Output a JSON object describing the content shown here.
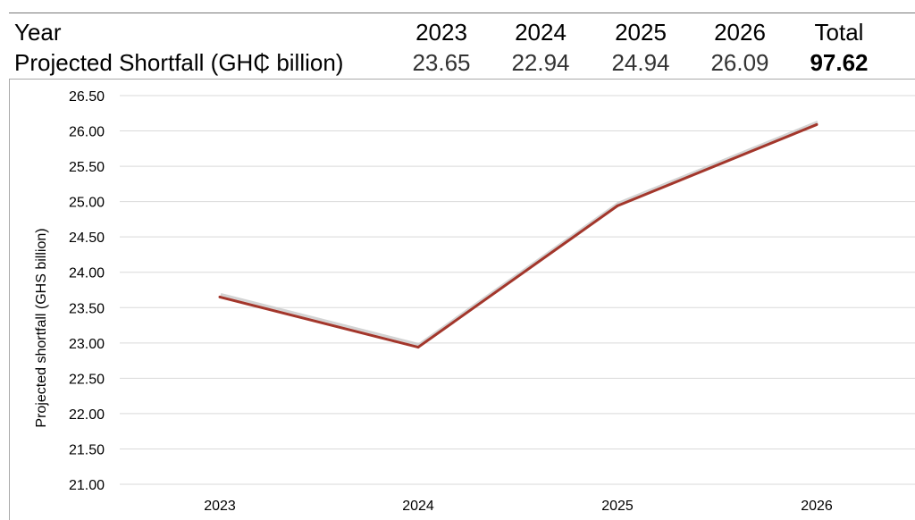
{
  "table": {
    "header_label": "Year",
    "row_label": "Projected Shortfall (GH₵ billion)",
    "years": [
      "2023",
      "2024",
      "2025",
      "2026"
    ],
    "values": [
      "23.65",
      "22.94",
      "24.94",
      "26.09"
    ],
    "total_header": "Total",
    "total_value": "97.62"
  },
  "chart_data": {
    "type": "line",
    "categories": [
      "2023",
      "2024",
      "2025",
      "2026"
    ],
    "series": [
      {
        "values": [
          23.65,
          22.94,
          24.94,
          26.09
        ]
      }
    ],
    "ylabel": "Projected shortfall (GHS billion)",
    "xlabel": "",
    "ylim": [
      21.0,
      26.5
    ],
    "yticks": [
      "21.00",
      "21.50",
      "22.00",
      "22.50",
      "23.00",
      "23.50",
      "24.00",
      "24.50",
      "25.00",
      "25.50",
      "26.00",
      "26.50"
    ],
    "grid": true,
    "line_color": "#a3362b"
  }
}
